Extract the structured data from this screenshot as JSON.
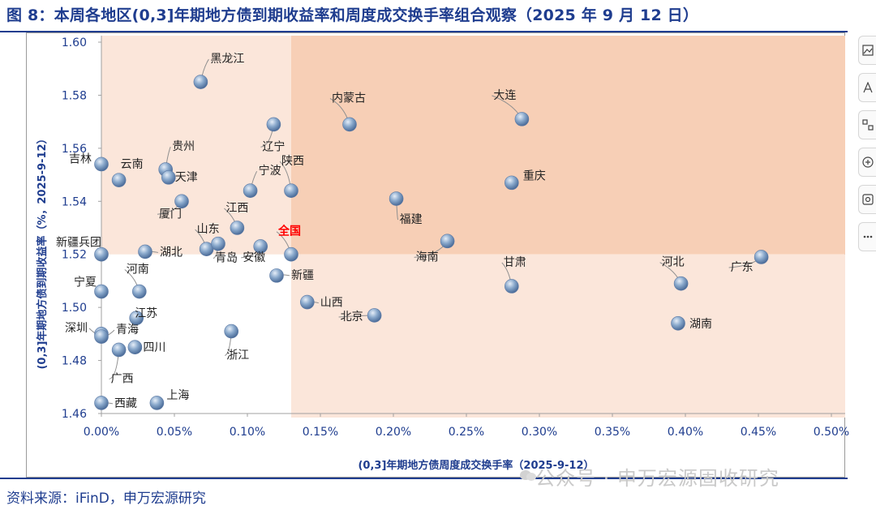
{
  "header": {
    "title": "图 8：本周各地区(0,3]年期地方债到期收益率和周度成交换手率组合观察（2025 年 9 月 12 日）"
  },
  "footer": {
    "source": "资料来源：iFinD，申万宏源研究",
    "watermark": "公众号 · 申万宏源固收研究"
  },
  "toolbar": {
    "icons": [
      "image-edit-icon",
      "text-style-icon",
      "crop-icon",
      "zoom-in-icon",
      "scan-icon",
      "more-icon"
    ]
  },
  "colors": {
    "title_blue": "#1f3d8f",
    "upper_band": "#fbe6da",
    "upper_right_quadrant": "#f7cfb6",
    "lower_right_quadrant": "#fbe6da",
    "highlight_label": "#ff0000"
  },
  "chart_data": {
    "type": "scatter",
    "xlabel": "(0,3]年期地方债周度成交换手率（2025-9-12）",
    "ylabel": "(0,3]年期地方债到期收益率（%，2025-9-12）",
    "xlim": [
      0,
      0.5
    ],
    "ylim": [
      1.46,
      1.6
    ],
    "x_unit": "%",
    "xticks": [
      "0.00%",
      "0.05%",
      "0.10%",
      "0.15%",
      "0.20%",
      "0.25%",
      "0.30%",
      "0.35%",
      "0.40%",
      "0.45%",
      "0.50%"
    ],
    "yticks": [
      "1.46",
      "1.48",
      "1.50",
      "1.52",
      "1.54",
      "1.56",
      "1.58",
      "1.60"
    ],
    "grid": false,
    "legend": "none",
    "reference": {
      "x": 0.13,
      "y": 1.52,
      "label": "全国"
    },
    "points": [
      {
        "label": "黑龙江",
        "x": 0.068,
        "y": 1.585
      },
      {
        "label": "内蒙古",
        "x": 0.17,
        "y": 1.569
      },
      {
        "label": "大连",
        "x": 0.288,
        "y": 1.571
      },
      {
        "label": "辽宁",
        "x": 0.118,
        "y": 1.569
      },
      {
        "label": "贵州",
        "x": 0.044,
        "y": 1.552
      },
      {
        "label": "吉林",
        "x": 0.0,
        "y": 1.554
      },
      {
        "label": "云南",
        "x": 0.012,
        "y": 1.548
      },
      {
        "label": "天津",
        "x": 0.046,
        "y": 1.549
      },
      {
        "label": "宁波",
        "x": 0.102,
        "y": 1.544
      },
      {
        "label": "陕西",
        "x": 0.13,
        "y": 1.544
      },
      {
        "label": "重庆",
        "x": 0.281,
        "y": 1.547
      },
      {
        "label": "厦门",
        "x": 0.055,
        "y": 1.54
      },
      {
        "label": "福建",
        "x": 0.202,
        "y": 1.541
      },
      {
        "label": "江西",
        "x": 0.093,
        "y": 1.53
      },
      {
        "label": "新疆兵团",
        "x": 0.0,
        "y": 1.52
      },
      {
        "label": "山东",
        "x": 0.072,
        "y": 1.522
      },
      {
        "label": "湖北",
        "x": 0.03,
        "y": 1.521
      },
      {
        "label": "青岛",
        "x": 0.08,
        "y": 1.524
      },
      {
        "label": "安徽",
        "x": 0.109,
        "y": 1.523
      },
      {
        "label": "全国",
        "x": 0.13,
        "y": 1.52
      },
      {
        "label": "海南",
        "x": 0.237,
        "y": 1.525
      },
      {
        "label": "新疆",
        "x": 0.12,
        "y": 1.512
      },
      {
        "label": "河南",
        "x": 0.026,
        "y": 1.506
      },
      {
        "label": "宁夏",
        "x": 0.0,
        "y": 1.506
      },
      {
        "label": "甘肃",
        "x": 0.281,
        "y": 1.508
      },
      {
        "label": "河北",
        "x": 0.397,
        "y": 1.509
      },
      {
        "label": "广东",
        "x": 0.452,
        "y": 1.519
      },
      {
        "label": "山西",
        "x": 0.141,
        "y": 1.502
      },
      {
        "label": "北京",
        "x": 0.187,
        "y": 1.497
      },
      {
        "label": "江苏",
        "x": 0.024,
        "y": 1.496
      },
      {
        "label": "湖南",
        "x": 0.395,
        "y": 1.494
      },
      {
        "label": "深圳",
        "x": 0.0,
        "y": 1.49
      },
      {
        "label": "青海",
        "x": 0.0,
        "y": 1.489
      },
      {
        "label": "浙江",
        "x": 0.089,
        "y": 1.491
      },
      {
        "label": "四川",
        "x": 0.023,
        "y": 1.485
      },
      {
        "label": "广西",
        "x": 0.012,
        "y": 1.484
      },
      {
        "label": "西藏",
        "x": 0.0,
        "y": 1.464
      },
      {
        "label": "上海",
        "x": 0.038,
        "y": 1.464
      }
    ]
  }
}
